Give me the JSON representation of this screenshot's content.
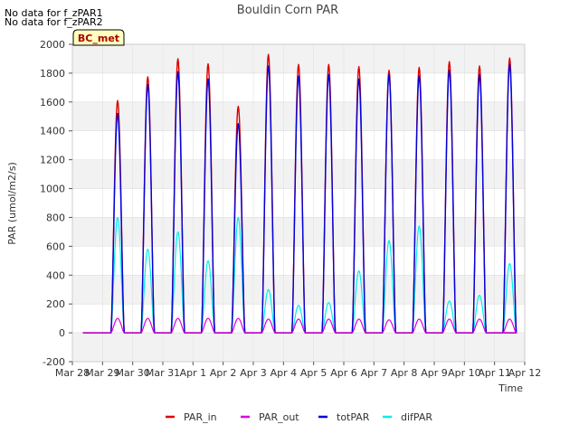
{
  "notices": [
    "No data for f_zPAR1",
    "No data for f_zPAR2"
  ],
  "chart_data": {
    "type": "line",
    "title": "Bouldin Corn PAR",
    "xlabel": "Time",
    "ylabel": "PAR (umol/m2/s)",
    "ylim": [
      -200,
      2000
    ],
    "xlim": [
      0,
      15
    ],
    "yticks": [
      -200,
      0,
      200,
      400,
      600,
      800,
      1000,
      1200,
      1400,
      1600,
      1800,
      2000
    ],
    "xtick_labels": [
      "Mar 28",
      "Mar 29",
      "Mar 30",
      "Mar 31",
      "Apr 1",
      "Apr 2",
      "Apr 3",
      "Apr 4",
      "Apr 5",
      "Apr 6",
      "Apr 7",
      "Apr 8",
      "Apr 9",
      "Apr 10",
      "Apr 11",
      "Apr 12"
    ],
    "grid": true,
    "legend_position": "bottom-center",
    "badge": "BC_met",
    "x_unit": "days since Mar 28 00:00",
    "series": [
      {
        "name": "PAR_in",
        "color": "#dd0000",
        "daily_peaks": [
          1610,
          1775,
          1900,
          1865,
          1570,
          1930,
          1860,
          1860,
          1845,
          1820,
          1840,
          1880,
          1850,
          1905
        ]
      },
      {
        "name": "PAR_out",
        "color": "#dd00dd",
        "daily_peaks": [
          100,
          100,
          100,
          100,
          100,
          95,
          95,
          95,
          95,
          90,
          95,
          95,
          95,
          95
        ]
      },
      {
        "name": "totPAR",
        "color": "#0000dd",
        "daily_peaks": [
          1520,
          1720,
          1810,
          1760,
          1450,
          1850,
          1780,
          1790,
          1760,
          1790,
          1780,
          1820,
          1790,
          1860
        ]
      },
      {
        "name": "difPAR",
        "color": "#00eeee",
        "daily_peaks": [
          800,
          580,
          700,
          500,
          800,
          300,
          190,
          210,
          430,
          640,
          740,
          220,
          260,
          480
        ]
      }
    ]
  }
}
